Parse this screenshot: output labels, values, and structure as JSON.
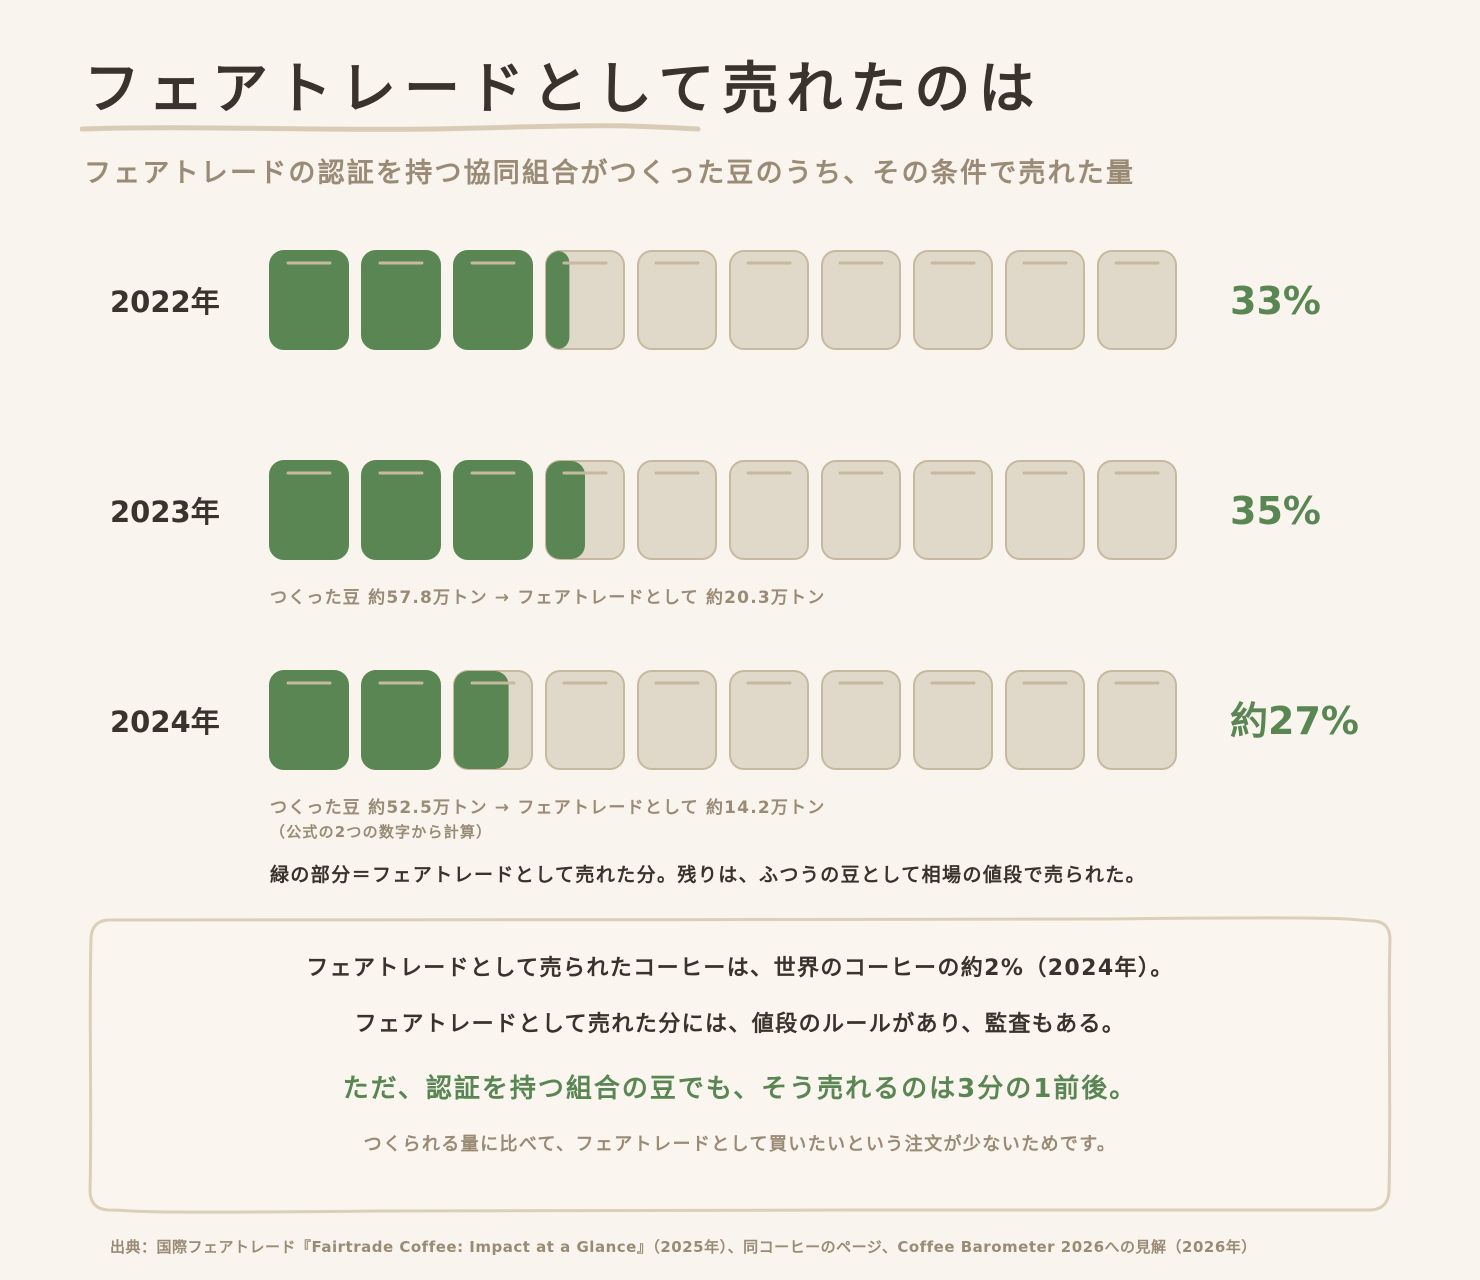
{
  "title": "フェアトレードとして売れたのは",
  "subtitle": "フェアトレードの認証を持つ協同組合がつくった豆のうち、その条件で売れた量",
  "colors": {
    "green": "#5a8653",
    "bag_empty": "#e0d8c9",
    "bag_border": "#c7b99f",
    "text_dark": "#3a332c",
    "text_muted": "#9a8b76",
    "background": "#f9f5ee"
  },
  "chart_data": {
    "type": "bar",
    "unit_icon": "coffee-bag-icon",
    "bags_per_row": 10,
    "categories": [
      "2022年",
      "2023年",
      "2024年"
    ],
    "values": [
      33,
      35,
      27
    ],
    "value_labels": [
      "33%",
      "35%",
      "約27%"
    ]
  },
  "notes": {
    "y2023": "つくった豆 約57.8万トン → フェアトレードとして 約20.3万トン",
    "y2024": "つくった豆 約52.5万トン → フェアトレードとして 約14.2万トン",
    "y2024_sub": "（公式の2つの数字から計算）"
  },
  "legend": "緑の部分＝フェアトレードとして売れた分。残りは、ふつうの豆として相場の値段で売られた。",
  "box": {
    "line1": "フェアトレードとして売られたコーヒーは、世界のコーヒーの約2%（2024年）。",
    "line2": "フェアトレードとして売れた分には、値段のルールがあり、監査もある。",
    "line3": "ただ、認証を持つ組合の豆でも、そう売れるのは3分の1前後。",
    "line4": "つくられる量に比べて、フェアトレードとして買いたいという注文が少ないためです。"
  },
  "source": "出典：国際フェアトレード『Fairtrade Coffee: Impact at a Glance』（2025年）、同コーヒーのページ、Coffee Barometer 2026への見解（2026年）"
}
